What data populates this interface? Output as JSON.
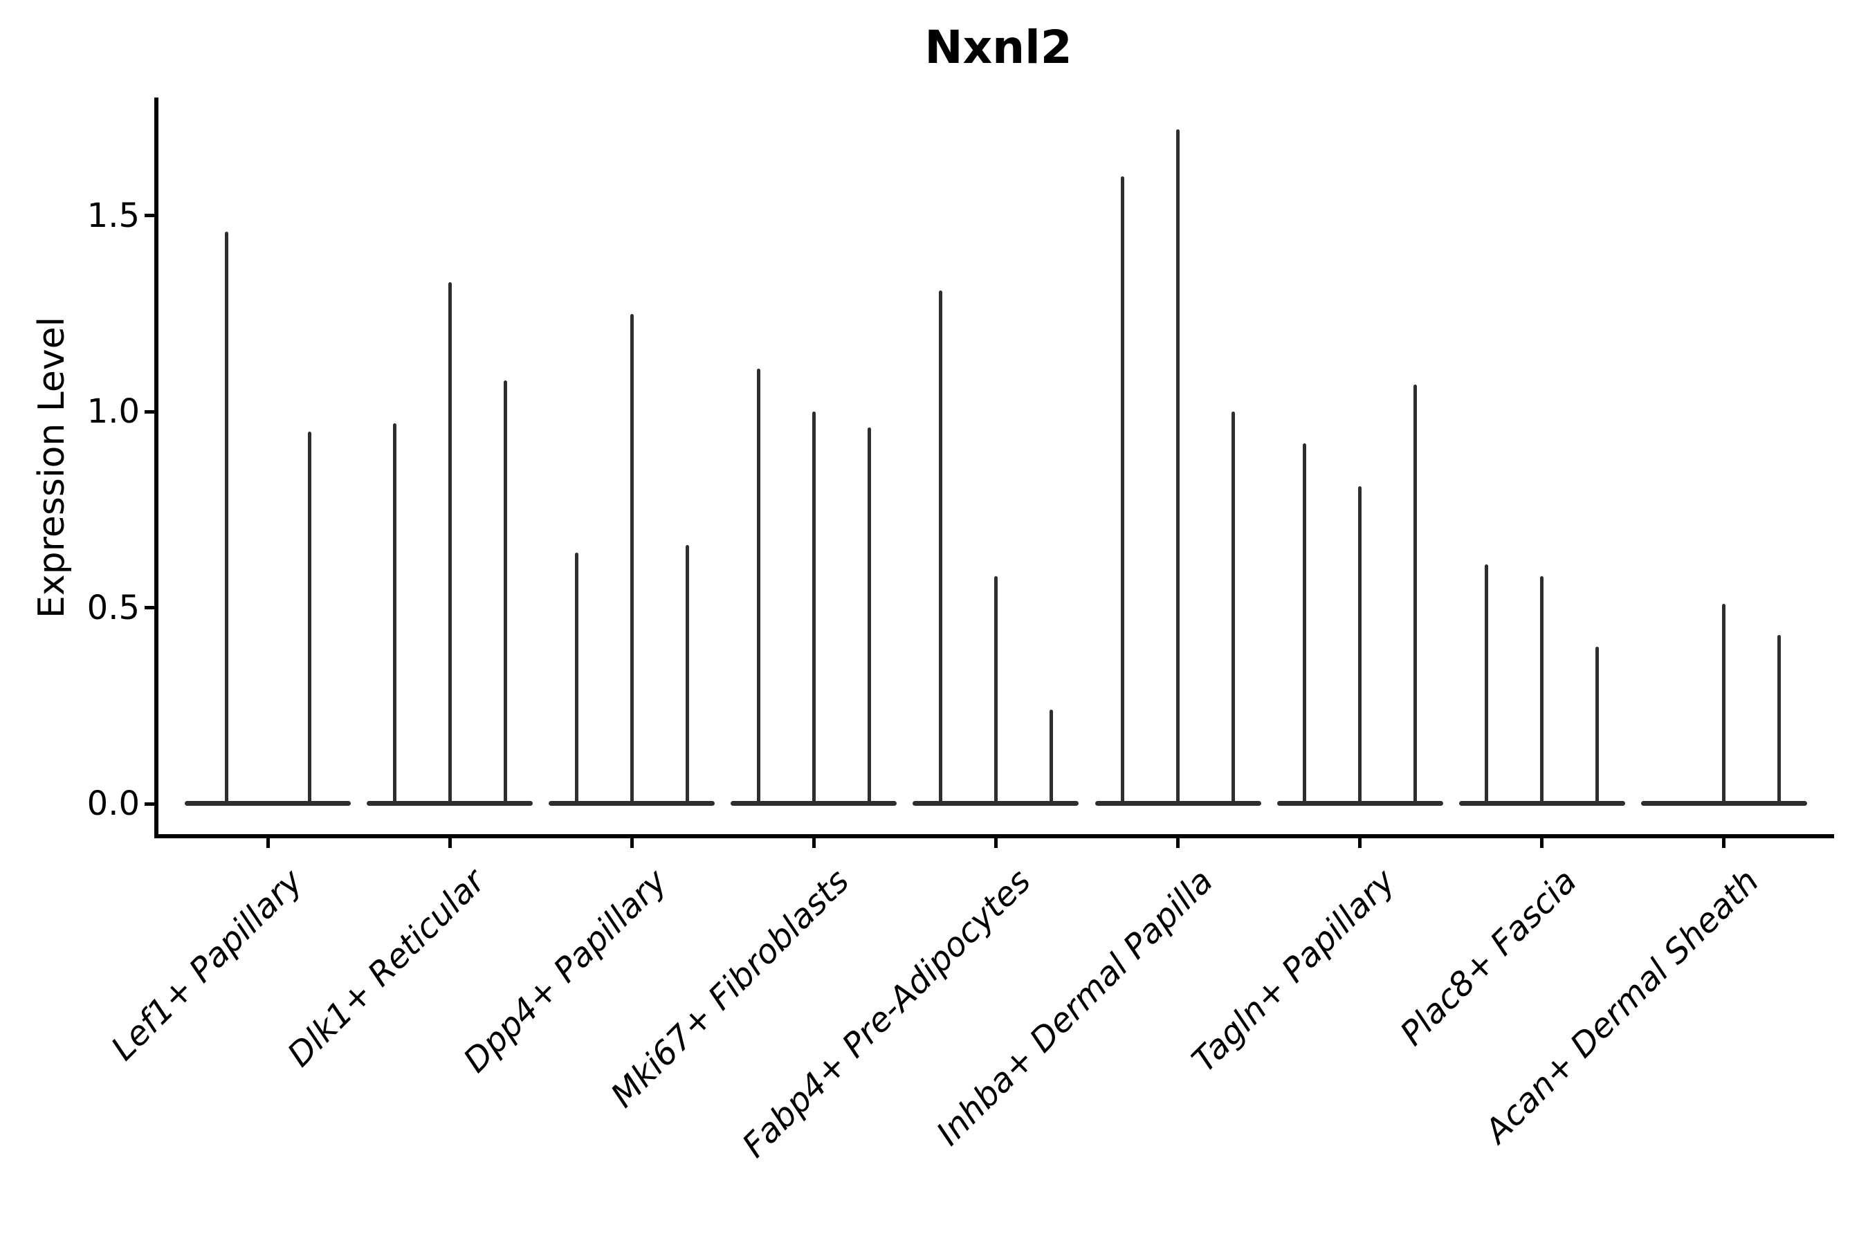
{
  "title": "Nxnl2",
  "y_axis": {
    "label": "Expression Level",
    "tick_labels": [
      "0.0",
      "0.5",
      "1.0",
      "1.5"
    ]
  },
  "chart_data": {
    "type": "violin",
    "title": "Nxnl2",
    "xlabel": "",
    "ylabel": "Expression Level",
    "ylim": [
      -0.09,
      1.8
    ],
    "yticks": [
      0.0,
      0.5,
      1.0,
      1.5
    ],
    "grid": false,
    "legend": "none",
    "description": "Single-cell expression violin plot; each violin is a wide flat mass at 0 with a thin spike reaching the maximum expression value. Groups with two violins have wider violins; zero-max violins are flat with no spike.",
    "categories": [
      "Lef1+ Papillary",
      "Dlk1+ Reticular",
      "Dpp4+ Papillary",
      "Mki67+ Fibroblasts",
      "Fabp4+ Pre-Adipocytes",
      "Inhba+ Dermal Papilla",
      "Tagln+ Papillary",
      "Plac8+ Fascia",
      "Acan+ Dermal Sheath"
    ],
    "groups": [
      {
        "category": "Lef1+ Papillary",
        "violin_max_values": [
          1.46,
          0.95
        ]
      },
      {
        "category": "Dlk1+ Reticular",
        "violin_max_values": [
          0.97,
          1.33,
          1.08
        ]
      },
      {
        "category": "Dpp4+ Papillary",
        "violin_max_values": [
          0.64,
          1.25,
          0.66
        ]
      },
      {
        "category": "Mki67+ Fibroblasts",
        "violin_max_values": [
          1.11,
          1.0,
          0.96
        ]
      },
      {
        "category": "Fabp4+ Pre-Adipocytes",
        "violin_max_values": [
          1.31,
          0.58,
          0.24
        ]
      },
      {
        "category": "Inhba+ Dermal Papilla",
        "violin_max_values": [
          1.6,
          1.72,
          1.0
        ]
      },
      {
        "category": "Tagln+ Papillary",
        "violin_max_values": [
          0.92,
          0.81,
          1.07
        ]
      },
      {
        "category": "Plac8+ Fascia",
        "violin_max_values": [
          0.61,
          0.58,
          0.4
        ]
      },
      {
        "category": "Acan+ Dermal Sheath",
        "violin_max_values": [
          0.0,
          0.51,
          0.43
        ]
      }
    ]
  },
  "style": {
    "violin_color": "#2e2e2e",
    "axis_color": "#000000",
    "background_color": "#ffffff"
  }
}
